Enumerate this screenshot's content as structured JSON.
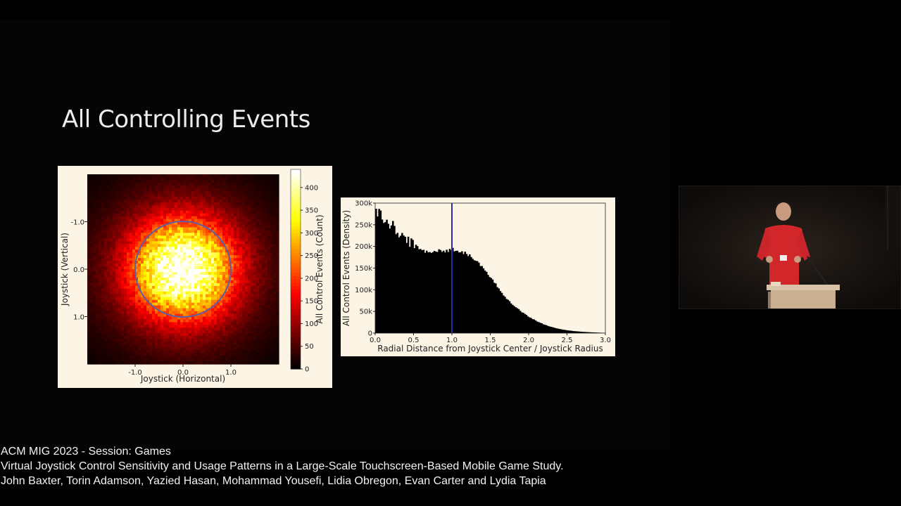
{
  "slide": {
    "title": "All Controlling Events"
  },
  "caption": {
    "line1": "ACM MIG 2023 - Session: Games",
    "line2": "Virtual Joystick Control Sensitivity and Usage Patterns in a Large-Scale Touchscreen-Based Mobile Game Study.",
    "line3": "John Baxter, Torin Adamson, Yazied Hasan, Mohammad Yousefi, Lidia Obregon, Evan Carter and Lydia Tapia"
  },
  "colors": {
    "slide_background": "#050505",
    "panel_background": "#fcf5e6",
    "joystick_circle": "#5a5fa8",
    "histogram_fill": "#000000",
    "reference_line": "#2b2f9e"
  },
  "chart_data": [
    {
      "type": "heatmap",
      "title": "",
      "xlabel": "Joystick (Horizontal)",
      "ylabel": "Joystick (Vertical)",
      "colorbar_label": "All Control Events (Count)",
      "xlim": [
        -2.0,
        2.0
      ],
      "ylim": [
        -2.0,
        2.0
      ],
      "y_inverted": true,
      "x_ticks": [
        -1.0,
        0.0,
        1.0
      ],
      "x_tick_labels": [
        "-1.0",
        "0.0",
        "1.0"
      ],
      "y_ticks": [
        -1.0,
        0.0,
        1.0
      ],
      "y_tick_labels": [
        "-1.0",
        "0.0",
        "1.0"
      ],
      "colorbar_range": [
        0,
        440
      ],
      "colorbar_ticks": [
        0,
        50,
        100,
        150,
        200,
        250,
        300,
        350,
        400
      ],
      "colorbar_tick_labels": [
        "0",
        "50",
        "100",
        "150",
        "200",
        "250",
        "300",
        "350",
        "400"
      ],
      "colormap": "hot",
      "overlay_circle": {
        "center": [
          0.0,
          0.0
        ],
        "radius": 1.0
      },
      "peak_count": 440,
      "grid": false
    },
    {
      "type": "bar",
      "title": "",
      "xlabel": "Radial Distance from Joystick Center / Joystick Radius",
      "ylabel": "All Control Events (Density)",
      "xlim": [
        0.0,
        3.0
      ],
      "ylim": [
        0,
        300000
      ],
      "x_ticks": [
        0.0,
        0.5,
        1.0,
        1.5,
        2.0,
        2.5,
        3.0
      ],
      "x_tick_labels": [
        "0.0",
        "0.5",
        "1.0",
        "1.5",
        "2.0",
        "2.5",
        "3.0"
      ],
      "y_ticks": [
        0,
        50000,
        100000,
        150000,
        200000,
        250000,
        300000
      ],
      "y_tick_labels": [
        "0",
        "50k",
        "100k",
        "150k",
        "200k",
        "250k",
        "300k"
      ],
      "reference_line_x": 1.0,
      "grid": false,
      "x": [
        0.0,
        0.05,
        0.1,
        0.15,
        0.2,
        0.3,
        0.4,
        0.5,
        0.6,
        0.7,
        0.8,
        0.9,
        0.95,
        1.0,
        1.05,
        1.1,
        1.2,
        1.3,
        1.4,
        1.5,
        1.6,
        1.7,
        1.8,
        1.9,
        2.0,
        2.1,
        2.2,
        2.3,
        2.4,
        2.5,
        2.6,
        2.7,
        2.8,
        2.9,
        3.0
      ],
      "values": [
        288000,
        275000,
        265000,
        255000,
        248000,
        232000,
        218000,
        202000,
        192000,
        188000,
        189000,
        190000,
        191000,
        193000,
        192000,
        189000,
        183000,
        170000,
        150000,
        128000,
        105000,
        82000,
        65000,
        50000,
        38000,
        28000,
        20000,
        14000,
        9500,
        6500,
        4500,
        3000,
        2000,
        1200,
        500
      ]
    }
  ]
}
